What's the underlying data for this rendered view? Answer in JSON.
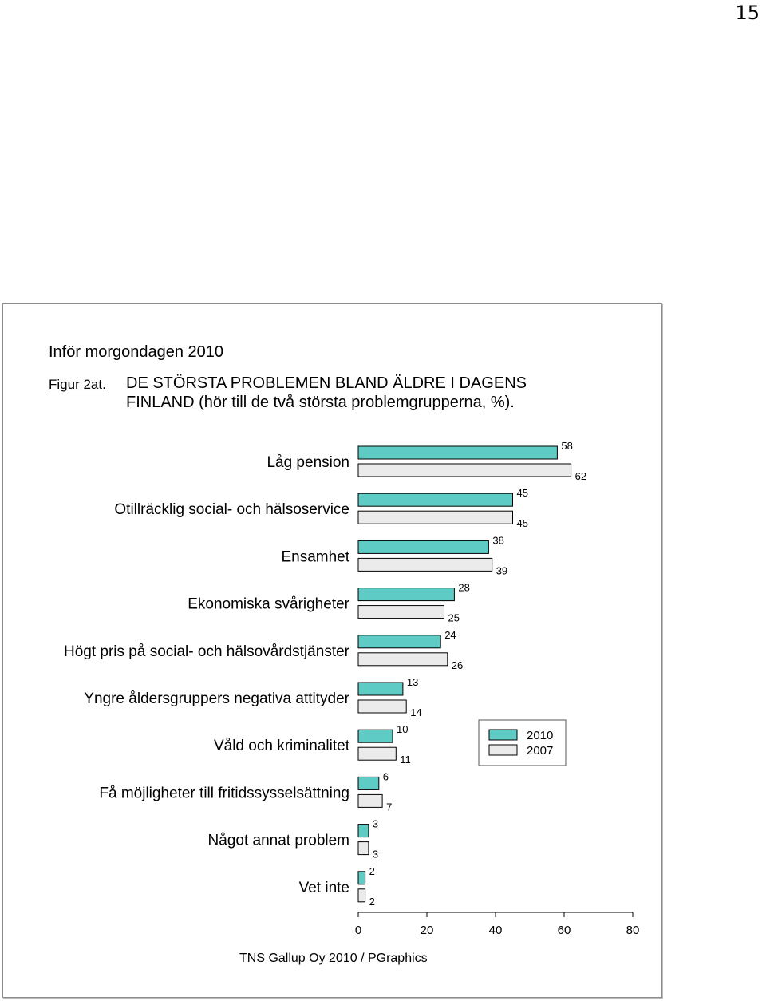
{
  "page_number": "15",
  "report_title": "Inför morgondagen 2010",
  "figure_label": "Figur 2at.",
  "figure_title_line1": "DE STÖRSTA PROBLEMEN BLAND ÄLDRE I DAGENS",
  "figure_title_line2": "FINLAND (hör till de två största problemgrupperna, %).",
  "source": "TNS Gallup Oy 2010 / PGraphics",
  "colors": {
    "series_2010": "#5ECCC4",
    "series_2007": "#EBEBEB",
    "bar_stroke": "#000000"
  },
  "chart_data": {
    "type": "bar",
    "orientation": "horizontal",
    "categories": [
      "Låg pension",
      "Otillräcklig social- och hälsoservice",
      "Ensamhet",
      "Ekonomiska svårigheter",
      "Högt pris på social- och hälsovårdstjänster",
      "Yngre åldersgruppers negativa attityder",
      "Våld och kriminalitet",
      "Få möjligheter till fritidssysselsättning",
      "Något annat problem",
      "Vet inte"
    ],
    "series": [
      {
        "name": "2010",
        "values": [
          58,
          45,
          38,
          28,
          24,
          13,
          10,
          6,
          3,
          2
        ]
      },
      {
        "name": "2007",
        "values": [
          62,
          45,
          39,
          25,
          26,
          14,
          11,
          7,
          3,
          2
        ]
      }
    ],
    "xlim": [
      0,
      80
    ],
    "xticks": [
      "0",
      "20",
      "40",
      "60",
      "80"
    ],
    "grid": false,
    "legend_position": "right"
  }
}
